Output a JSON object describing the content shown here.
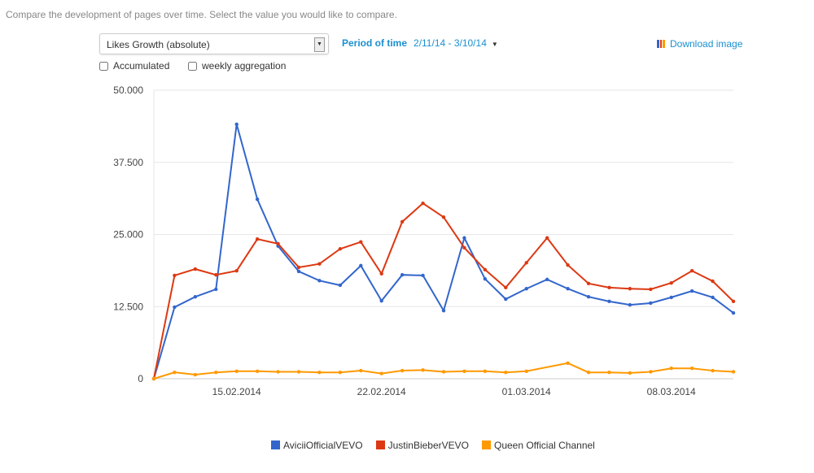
{
  "intro": "Compare the development of pages over time. Select the value you would like to compare.",
  "controls": {
    "metric": "Likes Growth (absolute)",
    "period_label": "Period of time",
    "period_value": "2/11/14 - 3/10/14",
    "download": "Download image",
    "accumulated": "Accumulated",
    "weekly": "weekly aggregation"
  },
  "chart_data": {
    "type": "line",
    "title": "",
    "xlabel": "",
    "ylabel": "",
    "ylim": [
      0,
      50000
    ],
    "y_ticks": [
      {
        "v": 0,
        "label": "0"
      },
      {
        "v": 12500,
        "label": "12.500"
      },
      {
        "v": 25000,
        "label": "25.000"
      },
      {
        "v": 37500,
        "label": "37.500"
      },
      {
        "v": 50000,
        "label": "50.000"
      }
    ],
    "x_start": "11.02.2014",
    "x_ticks": [
      {
        "i": 4,
        "label": "15.02.2014"
      },
      {
        "i": 11,
        "label": "22.02.2014"
      },
      {
        "i": 18,
        "label": "01.03.2014"
      },
      {
        "i": 25,
        "label": "08.03.2014"
      }
    ],
    "legend_position": "bottom",
    "series": [
      {
        "name": "AviciiOfficialVEVO",
        "color": "#3366cc",
        "values": [
          0,
          12400,
          14200,
          15500,
          44100,
          31100,
          23000,
          18600,
          17000,
          16200,
          19600,
          13500,
          18000,
          17900,
          11800,
          24400,
          17300,
          13800,
          15600,
          17200,
          15600,
          14200,
          13400,
          12800,
          13100,
          14100,
          15200,
          14100,
          11400
        ]
      },
      {
        "name": "JustinBieberVEVO",
        "color": "#dc3912",
        "values": [
          0,
          17900,
          19000,
          18000,
          18700,
          24200,
          23400,
          19300,
          19900,
          22500,
          23700,
          18200,
          27200,
          30400,
          28000,
          22700,
          18900,
          15800,
          20100,
          24400,
          19700,
          16500,
          15800,
          15600,
          15500,
          16600,
          18700,
          16900,
          13400
        ]
      },
      {
        "name": "Queen Official Channel",
        "color": "#ff9900",
        "values": [
          0,
          1100,
          700,
          1100,
          1300,
          1300,
          1200,
          1200,
          1100,
          1100,
          1400,
          900,
          1400,
          1500,
          1200,
          1300,
          1300,
          1100,
          1300,
          null,
          2700,
          1100,
          1100,
          1000,
          1200,
          1800,
          1800,
          1400,
          1200
        ]
      }
    ]
  }
}
